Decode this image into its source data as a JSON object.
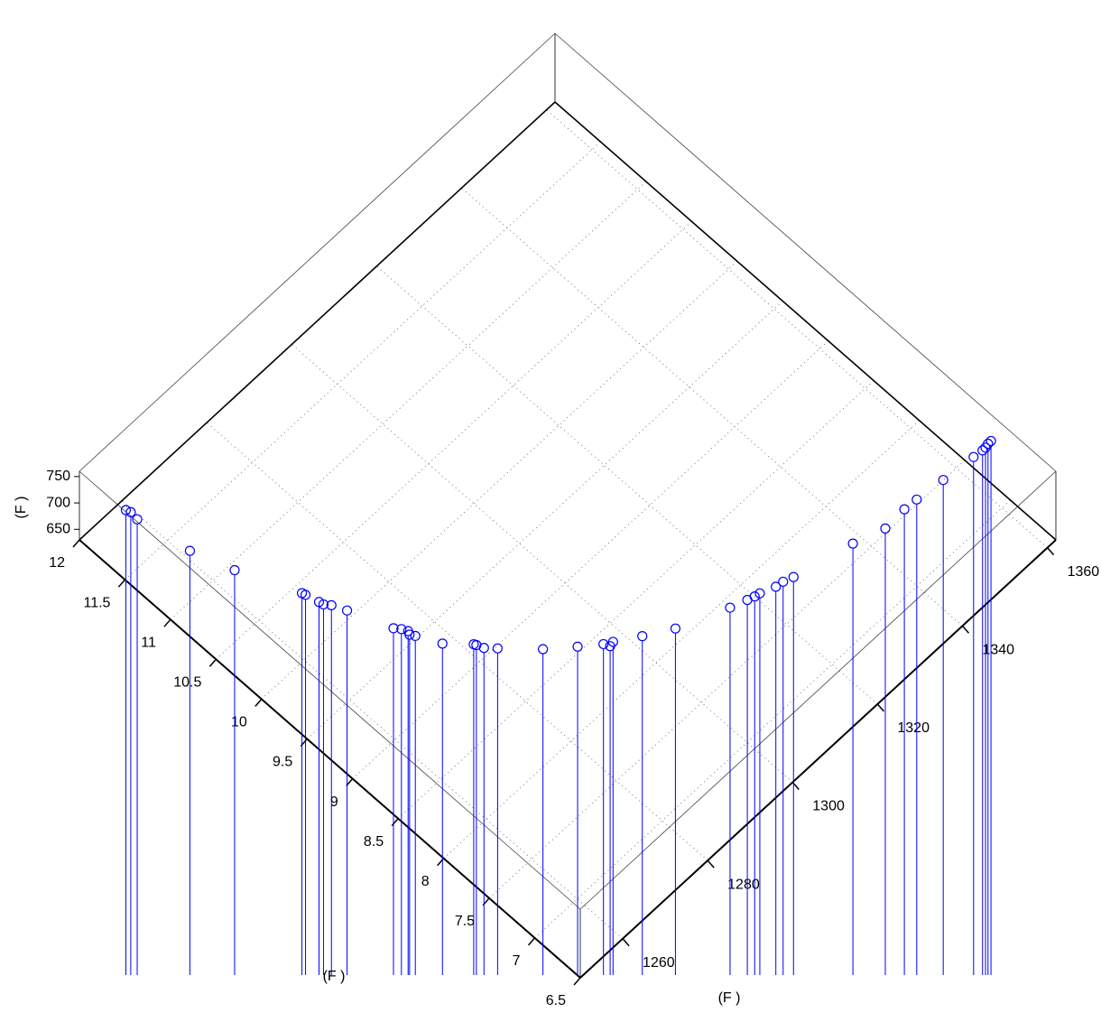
{
  "chart_data": {
    "type": "stem3",
    "x_label": "(F   )",
    "y_label": "(F   )",
    "z_label": "(F   )",
    "color": "#0000ff",
    "xlim": [
      1250,
      1362
    ],
    "ylim": [
      6.5,
      12
    ],
    "zlim": [
      630,
      760
    ],
    "xticks": [
      1260,
      1280,
      1300,
      1320,
      1340,
      1360
    ],
    "yticks": [
      6.5,
      7,
      7.5,
      8,
      8.5,
      9,
      9.5,
      10,
      10.5,
      11,
      11.5,
      12
    ],
    "zticks": [
      650,
      700,
      750
    ],
    "grid": true,
    "x": [
      1253.0,
      1253.3,
      1253.1,
      1255.0,
      1257.6,
      1262.3,
      1262.5,
      1263.1,
      1263.3,
      1264.1,
      1265.2,
      1268.2,
      1269.0,
      1269.5,
      1269.2,
      1269.7,
      1271.8,
      1275.3,
      1275.5,
      1276.0,
      1277.5,
      1282.6,
      1286.9,
      1290.2,
      1290.7,
      1291.6,
      1295.7,
      1300.5,
      1309.5,
      1312.5,
      1313.8,
      1314.8,
      1317.5,
      1319.0,
      1320.8,
      1332.0,
      1337.7,
      1342.4,
      1345.1,
      1350.7,
      1357.2,
      1359.1,
      1359.8,
      1360.6,
      1361.3
    ],
    "y": [
      11.63,
      11.59,
      11.51,
      11.02,
      10.65,
      10.13,
      10.1,
      9.98,
      9.94,
      9.89,
      9.77,
      9.4,
      9.35,
      9.3,
      9.27,
      9.23,
      9.03,
      8.85,
      8.83,
      8.77,
      8.69,
      8.43,
      8.25,
      8.12,
      8.07,
      8.08,
      7.95,
      7.81,
      7.63,
      7.58,
      7.56,
      7.55,
      7.5,
      7.49,
      7.46,
      7.33,
      7.24,
      7.25,
      7.24,
      7.21,
      7.18,
      7.17,
      7.17,
      7.18,
      7.18
    ],
    "z": [
      720,
      720,
      720,
      720,
      720,
      720,
      720,
      720,
      720,
      720,
      720,
      720,
      720,
      720,
      720,
      720,
      720,
      720,
      720,
      720,
      720,
      720,
      720,
      720,
      720,
      720,
      720,
      720,
      720,
      720,
      720,
      720,
      720,
      720,
      720,
      720,
      720,
      720,
      720,
      720,
      720,
      720,
      720,
      720,
      720
    ]
  }
}
